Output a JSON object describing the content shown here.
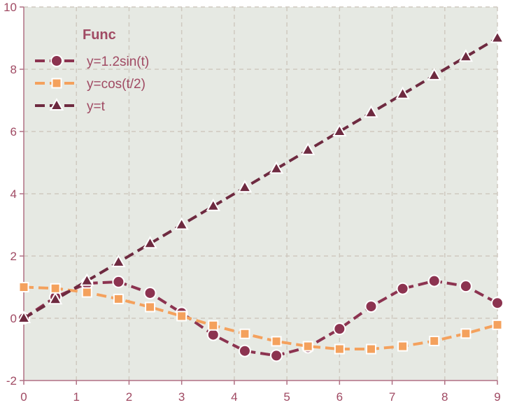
{
  "chart_data": {
    "type": "line",
    "title": "",
    "xlabel": "",
    "ylabel": "",
    "xlim": [
      0,
      9
    ],
    "ylim": [
      -2,
      10
    ],
    "xticks": [
      0,
      1,
      2,
      3,
      4,
      5,
      6,
      7,
      8,
      9
    ],
    "yticks": [
      -2,
      0,
      2,
      4,
      6,
      8,
      10
    ],
    "xtick_labels": [
      "0",
      "1",
      "2",
      "3",
      "4",
      "5",
      "6",
      "7",
      "8",
      "9"
    ],
    "ytick_labels": [
      "-2",
      "0",
      "2",
      "4",
      "6",
      "8",
      "10"
    ],
    "grid": true,
    "legend": {
      "title": "Func",
      "placement": "top-left"
    },
    "x": [
      0,
      0.6,
      1.2,
      1.8,
      2.4,
      3.0,
      3.6,
      4.2,
      4.8,
      5.4,
      6.0,
      6.6,
      7.2,
      7.8,
      8.4,
      9.0
    ],
    "series": [
      {
        "name": "y=1.2sin(t)",
        "color": "#8c3350",
        "marker": "circle",
        "values": [
          0,
          0.68,
          1.12,
          1.17,
          0.81,
          0.17,
          -0.53,
          -1.05,
          -1.2,
          -0.93,
          -0.34,
          0.38,
          0.95,
          1.2,
          1.03,
          0.49
        ]
      },
      {
        "name": "y=cos(t/2)",
        "color": "#f4a15d",
        "marker": "square",
        "values": [
          1.0,
          0.96,
          0.83,
          0.62,
          0.36,
          0.07,
          -0.23,
          -0.5,
          -0.74,
          -0.9,
          -0.99,
          -0.99,
          -0.9,
          -0.73,
          -0.49,
          -0.21
        ]
      },
      {
        "name": "y=t",
        "color": "#6e2a40",
        "marker": "triangle",
        "values": [
          0,
          0.6,
          1.2,
          1.8,
          2.4,
          3.0,
          3.6,
          4.2,
          4.8,
          5.4,
          6.0,
          6.6,
          7.2,
          7.8,
          8.4,
          9.0
        ]
      }
    ],
    "colors": {
      "plot_background": "#e6e9e3",
      "grid": "#cfc9c0",
      "axis": "#b07084",
      "text": "#a04a63"
    }
  }
}
